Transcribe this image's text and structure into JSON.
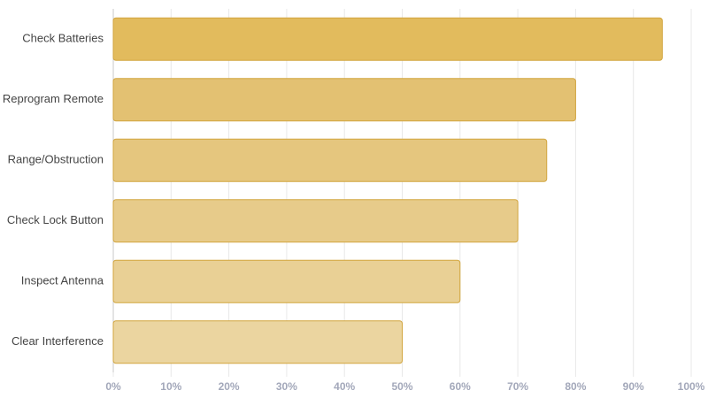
{
  "chart_data": {
    "type": "hbar",
    "categories": [
      "Check Batteries",
      "Reprogram Remote",
      "Range/Obstruction",
      "Check Lock Button",
      "Inspect Antenna",
      "Clear Interference"
    ],
    "values": [
      95,
      80,
      75,
      70,
      60,
      50
    ],
    "colors": [
      "#e2bb5d",
      "#e3c172",
      "#e5c67e",
      "#e7cb8a",
      "#e9d095",
      "#ebd5a0"
    ],
    "border_color": "#d2a53e",
    "xlim": [
      0,
      100
    ],
    "xticks": [
      {
        "value": 0,
        "label": "0%"
      },
      {
        "value": 10,
        "label": "10%"
      },
      {
        "value": 20,
        "label": "20%"
      },
      {
        "value": 30,
        "label": "30%"
      },
      {
        "value": 40,
        "label": "40%"
      },
      {
        "value": 50,
        "label": "50%"
      },
      {
        "value": 60,
        "label": "60%"
      },
      {
        "value": 70,
        "label": "70%"
      },
      {
        "value": 80,
        "label": "80%"
      },
      {
        "value": 90,
        "label": "90%"
      },
      {
        "value": 100,
        "label": "100%"
      }
    ],
    "grid": true
  }
}
